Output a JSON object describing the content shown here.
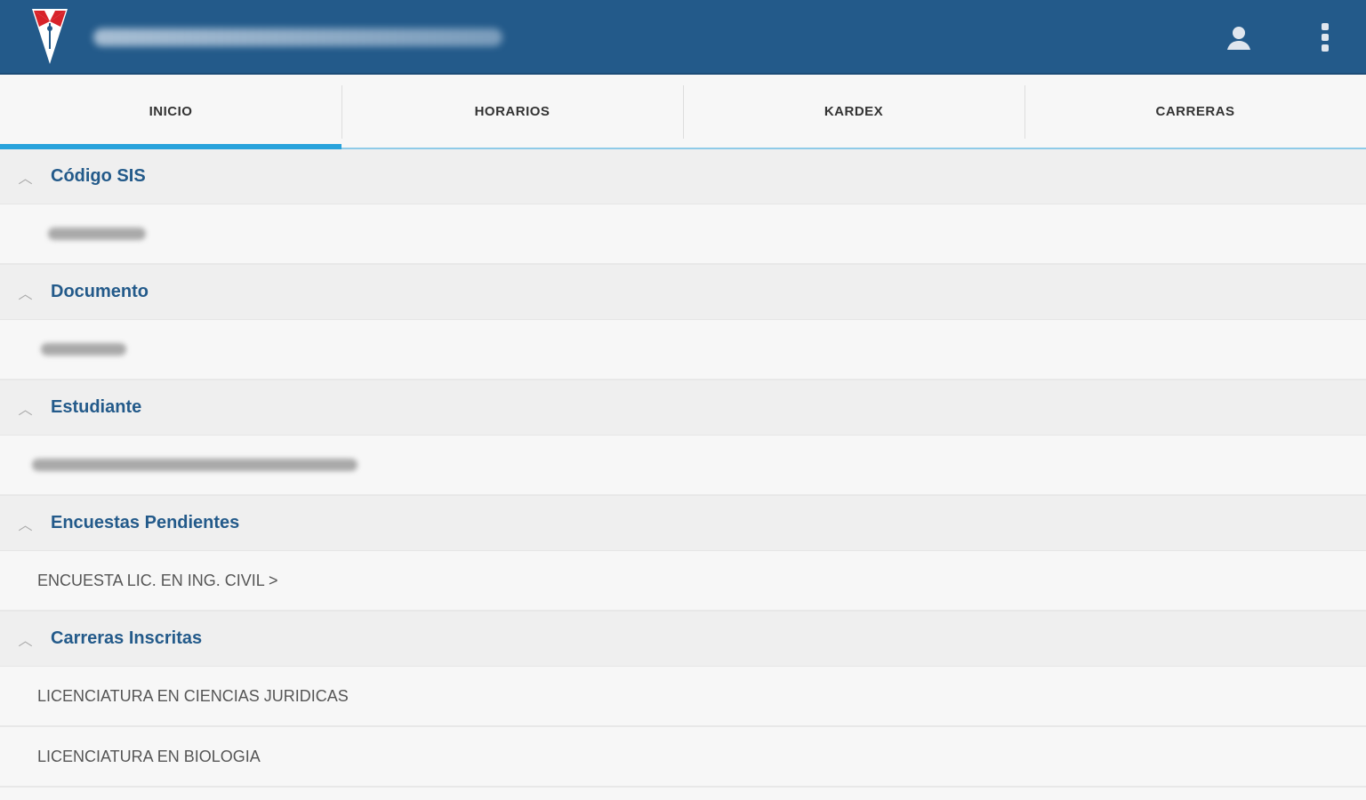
{
  "header": {
    "brand_color": "#235a8a",
    "accent_color": "#29a3dc",
    "icons": [
      "university-shield-logo",
      "account-icon",
      "more-vert-icon"
    ]
  },
  "tabs": [
    {
      "label": "INICIO",
      "active": true
    },
    {
      "label": "HORARIOS"
    },
    {
      "label": "KARDEX"
    },
    {
      "label": "CARRERAS"
    }
  ],
  "sections": {
    "codigo": {
      "title": "Código SIS"
    },
    "documento": {
      "title": "Documento"
    },
    "estudiante": {
      "title": "Estudiante"
    },
    "encuestas": {
      "title": "Encuestas Pendientes",
      "items": [
        "ENCUESTA LIC. EN ING. CIVIL >"
      ]
    },
    "carreras": {
      "title": "Carreras Inscritas",
      "items": [
        "LICENCIATURA EN CIENCIAS JURIDICAS",
        "LICENCIATURA EN BIOLOGIA"
      ]
    }
  }
}
